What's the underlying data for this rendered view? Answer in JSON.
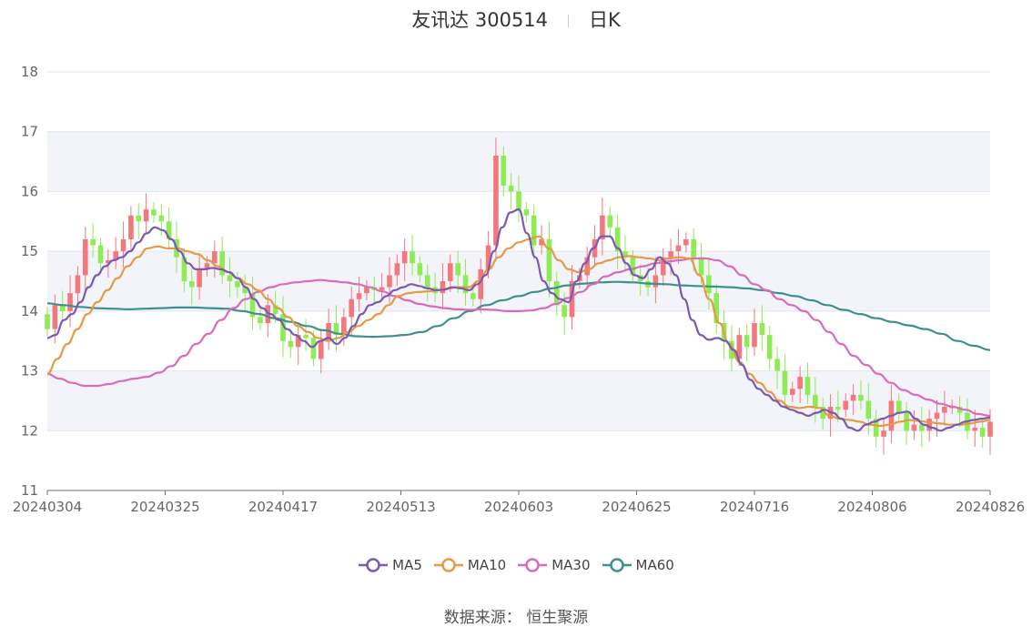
{
  "title": {
    "stock": "友讯达 300514",
    "period": "日K"
  },
  "source": {
    "label": "数据来源：",
    "provider": "恒生聚源"
  },
  "colors": {
    "up": "#f4777e",
    "down": "#8deb53",
    "ma5": "#7b5bb0",
    "ma10": "#e79a45",
    "ma30": "#d86cb6",
    "ma60": "#3f8f8c",
    "band": "#f3f4fa",
    "grid": "#e1e4ee"
  },
  "chart_data": {
    "type": "candlestick",
    "ylim": [
      11,
      18
    ],
    "yticks": [
      "11",
      "12",
      "13",
      "14",
      "15",
      "16",
      "17",
      "18"
    ],
    "xticks": [
      {
        "label": "20240304",
        "index": 0
      },
      {
        "label": "20240325",
        "index": 15
      },
      {
        "label": "20240417",
        "index": 30
      },
      {
        "label": "20240513",
        "index": 45
      },
      {
        "label": "20240603",
        "index": 60
      },
      {
        "label": "20240625",
        "index": 75
      },
      {
        "label": "20240716",
        "index": 90
      },
      {
        "label": "20240806",
        "index": 105
      },
      {
        "label": "20240826",
        "index": 120
      }
    ],
    "closes": [
      13.7,
      14.1,
      14.0,
      14.3,
      14.6,
      15.2,
      15.1,
      14.8,
      14.85,
      15.0,
      15.2,
      15.6,
      15.5,
      15.7,
      15.6,
      15.5,
      15.2,
      14.9,
      14.5,
      14.4,
      14.7,
      14.8,
      15.0,
      14.6,
      14.5,
      14.4,
      14.3,
      13.9,
      13.8,
      14.1,
      13.95,
      13.5,
      13.4,
      13.6,
      13.55,
      13.2,
      13.5,
      13.8,
      13.6,
      13.9,
      14.2,
      14.3,
      14.4,
      14.35,
      14.4,
      14.6,
      14.8,
      15.0,
      14.8,
      14.6,
      14.4,
      14.3,
      14.5,
      14.8,
      14.6,
      14.3,
      14.2,
      14.7,
      15.1,
      16.6,
      16.1,
      16.0,
      15.7,
      15.6,
      15.1,
      15.2,
      14.5,
      14.1,
      13.9,
      14.5,
      14.6,
      14.9,
      15.2,
      15.6,
      15.4,
      15.0,
      14.9,
      14.6,
      14.5,
      14.4,
      14.6,
      14.9,
      15.0,
      15.1,
      15.2,
      14.9,
      14.6,
      14.3,
      13.8,
      13.5,
      13.2,
      13.6,
      13.4,
      13.8,
      13.6,
      13.2,
      13.0,
      12.6,
      12.7,
      12.9,
      12.6,
      12.4,
      12.2,
      12.4,
      12.35,
      12.5,
      12.6,
      12.5,
      12.2,
      11.9,
      12.0,
      12.5,
      12.3,
      12.0,
      12.1,
      12.0,
      12.2,
      12.3,
      12.4,
      12.4,
      12.3,
      12.0,
      12.05,
      11.9,
      12.15
    ],
    "ma5": [
      13.55,
      13.6,
      13.85,
      13.95,
      14.15,
      14.4,
      14.6,
      14.75,
      14.85,
      14.9,
      15.0,
      15.15,
      15.3,
      15.4,
      15.35,
      15.2,
      15.0,
      14.8,
      14.7,
      14.7,
      14.72,
      14.7,
      14.65,
      14.55,
      14.4,
      14.2,
      14.05,
      13.95,
      13.85,
      13.7,
      13.6,
      13.5,
      13.4,
      13.5,
      13.55,
      13.45,
      13.55,
      13.75,
      13.95,
      14.1,
      14.15,
      14.25,
      14.35,
      14.4,
      14.45,
      14.42,
      14.38,
      14.35,
      14.36,
      14.4,
      14.38,
      14.35,
      14.45,
      14.6,
      15.0,
      15.4,
      15.65,
      15.7,
      15.3,
      14.9,
      14.5,
      14.3,
      14.2,
      14.15,
      14.5,
      14.8,
      15.05,
      15.25,
      15.25,
      15.05,
      14.8,
      14.6,
      14.55,
      14.7,
      14.9,
      14.8,
      14.6,
      14.2,
      13.85,
      13.6,
      13.52,
      13.55,
      13.5,
      13.35,
      13.1,
      12.85,
      12.7,
      12.6,
      12.5,
      12.4,
      12.35,
      12.3,
      12.25,
      12.3,
      12.35,
      12.3,
      12.2,
      12.05,
      12.0,
      12.1,
      12.15,
      12.2,
      12.25,
      12.3,
      12.32,
      12.2,
      12.1,
      12.05,
      12.0,
      12.05,
      12.1,
      12.15,
      12.18,
      12.2,
      12.22
    ],
    "ma10": [
      12.95,
      13.2,
      13.45,
      13.7,
      13.95,
      14.15,
      14.35,
      14.55,
      14.75,
      14.9,
      15.05,
      15.08,
      15.05,
      15.05,
      15.0,
      14.95,
      14.85,
      14.75,
      14.65,
      14.55,
      14.45,
      14.35,
      14.2,
      14.05,
      13.9,
      13.75,
      13.65,
      13.55,
      13.5,
      13.55,
      13.65,
      13.75,
      13.85,
      13.95,
      14.1,
      14.25,
      14.3,
      14.32,
      14.33,
      14.35,
      14.38,
      14.4,
      14.4,
      14.5,
      14.7,
      14.9,
      15.05,
      15.15,
      15.2,
      15.25,
      15.05,
      14.85,
      14.7,
      14.65,
      14.7,
      14.8,
      14.85,
      14.9,
      14.92,
      14.9,
      14.88,
      14.85,
      14.88,
      14.9,
      14.88,
      14.6,
      14.2,
      13.8,
      13.45,
      13.15,
      12.95,
      12.8,
      12.65,
      12.5,
      12.4,
      12.38,
      12.4,
      12.38,
      12.25,
      12.2,
      12.18,
      12.15,
      12.1,
      12.08,
      12.1,
      12.15,
      12.18,
      12.16,
      12.14,
      12.12,
      12.1,
      12.1,
      12.12,
      12.15,
      12.18
    ],
    "ma30": [
      12.95,
      12.87,
      12.8,
      12.75,
      12.75,
      12.78,
      12.83,
      12.87,
      12.9,
      12.97,
      13.08,
      13.25,
      13.45,
      13.62,
      13.85,
      14.05,
      14.2,
      14.32,
      14.4,
      14.45,
      14.48,
      14.5,
      14.52,
      14.5,
      14.48,
      14.45,
      14.4,
      14.33,
      14.25,
      14.18,
      14.12,
      14.08,
      14.05,
      14.03,
      14.02,
      14.03,
      14.02,
      14.0,
      14.0,
      14.01,
      14.05,
      14.12,
      14.22,
      14.32,
      14.45,
      14.58,
      14.65,
      14.7,
      14.75,
      14.8,
      14.83,
      14.85,
      14.88,
      14.88,
      14.85,
      14.75,
      14.6,
      14.45,
      14.35,
      14.2,
      14.1,
      14.0,
      13.85,
      13.65,
      13.45,
      13.25,
      13.1,
      12.95,
      12.8,
      12.68,
      12.6,
      12.52,
      12.45,
      12.4,
      12.35,
      12.28,
      12.25
    ],
    "ma60": [
      14.13,
      14.1,
      14.07,
      14.05,
      14.04,
      14.03,
      14.04,
      14.05,
      14.06,
      14.06,
      14.05,
      14.04,
      14.0,
      13.95,
      13.88,
      13.82,
      13.75,
      13.68,
      13.62,
      13.58,
      13.57,
      13.58,
      13.6,
      13.65,
      13.75,
      13.88,
      14.0,
      14.1,
      14.18,
      14.25,
      14.32,
      14.38,
      14.43,
      14.46,
      14.48,
      14.49,
      14.48,
      14.46,
      14.45,
      14.43,
      14.42,
      14.41,
      14.4,
      14.38,
      14.35,
      14.3,
      14.25,
      14.18,
      14.1,
      14.02,
      13.95,
      13.88,
      13.82,
      13.76,
      13.7,
      13.62,
      13.5,
      13.42,
      13.35
    ],
    "legend": [
      {
        "key": "ma5",
        "label": "MA5"
      },
      {
        "key": "ma10",
        "label": "MA10"
      },
      {
        "key": "ma30",
        "label": "MA30"
      },
      {
        "key": "ma60",
        "label": "MA60"
      }
    ],
    "legend_position": "bottom-center",
    "grid": true
  }
}
